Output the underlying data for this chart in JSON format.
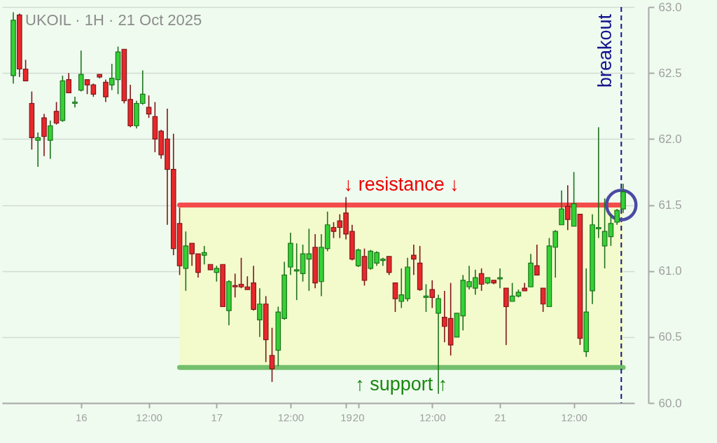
{
  "chart_data": {
    "type": "candlestick",
    "title": "UKOIL · 1H · 21 Oct 2025",
    "categories": [
      null,
      null,
      null,
      null,
      null,
      null,
      null,
      null,
      null,
      null,
      null,
      "16",
      null,
      null,
      null,
      null,
      null,
      null,
      null,
      null,
      null,
      null,
      "12:00",
      null,
      null,
      null,
      null,
      null,
      null,
      null,
      null,
      null,
      null,
      "17",
      null,
      null,
      null,
      null,
      null,
      null,
      null,
      null,
      null,
      null,
      null,
      "12:00",
      null,
      null,
      null,
      null,
      null,
      null,
      null,
      null,
      "19",
      null,
      "20",
      null,
      null,
      null,
      null,
      null,
      null,
      null,
      null,
      null,
      null,
      null,
      "12:00",
      null,
      null,
      null,
      null,
      null,
      null,
      null,
      null,
      null,
      null,
      "21",
      null,
      null,
      null,
      null,
      null,
      null,
      null,
      null,
      null,
      null,
      null,
      "12:00",
      null,
      null,
      null,
      null,
      null,
      null,
      null,
      null
    ],
    "ohlc": [
      [
        62.48,
        62.96,
        62.42,
        62.9
      ],
      [
        62.94,
        62.95,
        62.47,
        62.53
      ],
      [
        62.53,
        62.6,
        62.44,
        62.44
      ],
      [
        62.27,
        62.36,
        61.92,
        62.01
      ],
      [
        61.99,
        62.05,
        61.79,
        62.01
      ],
      [
        62.16,
        62.19,
        61.87,
        62.02
      ],
      [
        61.99,
        62.14,
        61.85,
        62.1
      ],
      [
        62.21,
        62.28,
        62.11,
        62.12
      ],
      [
        62.14,
        62.48,
        62.13,
        62.44
      ],
      [
        62.45,
        62.5,
        62.35,
        62.35
      ],
      [
        62.27,
        62.32,
        62.24,
        62.28
      ],
      [
        62.37,
        62.67,
        62.36,
        62.49
      ],
      [
        62.45,
        62.45,
        62.34,
        62.41
      ],
      [
        62.41,
        62.42,
        62.32,
        62.34
      ],
      [
        62.49,
        62.49,
        62.46,
        62.47
      ],
      [
        62.43,
        62.45,
        62.28,
        62.32
      ],
      [
        62.41,
        62.57,
        62.37,
        62.46
      ],
      [
        62.45,
        62.7,
        62.34,
        62.66
      ],
      [
        62.68,
        62.68,
        62.27,
        62.29
      ],
      [
        62.3,
        62.41,
        62.09,
        62.1
      ],
      [
        62.1,
        62.29,
        62.08,
        62.27
      ],
      [
        62.27,
        62.52,
        62.26,
        62.34
      ],
      [
        62.24,
        62.33,
        62.16,
        62.19
      ],
      [
        62.17,
        62.28,
        61.9,
        62.0
      ],
      [
        62.06,
        62.07,
        61.85,
        61.88
      ],
      [
        62.0,
        62.23,
        61.35,
        61.77
      ],
      [
        61.77,
        62.04,
        61.12,
        61.17
      ],
      [
        61.36,
        61.48,
        60.97,
        61.04
      ],
      [
        61.02,
        61.3,
        60.85,
        61.19
      ],
      [
        61.21,
        61.21,
        61.04,
        61.13
      ],
      [
        61.13,
        61.13,
        60.95,
        60.99
      ],
      [
        61.12,
        61.19,
        61.05,
        61.14
      ],
      [
        61.05,
        61.05,
        61.01,
        61.01
      ],
      [
        60.99,
        61.04,
        60.92,
        61.02
      ],
      [
        61.05,
        61.05,
        60.73,
        60.73
      ],
      [
        60.7,
        60.93,
        60.59,
        60.92
      ],
      [
        60.89,
        60.98,
        60.8,
        60.88
      ],
      [
        60.9,
        61.1,
        60.87,
        60.88
      ],
      [
        60.88,
        60.96,
        60.86,
        60.86
      ],
      [
        60.91,
        61.04,
        60.7,
        60.71
      ],
      [
        60.63,
        60.87,
        60.5,
        60.75
      ],
      [
        60.75,
        60.81,
        60.31,
        60.48
      ],
      [
        60.36,
        60.57,
        60.16,
        60.26
      ],
      [
        60.4,
        60.73,
        60.28,
        60.69
      ],
      [
        60.64,
        61.07,
        60.63,
        60.97
      ],
      [
        61.03,
        61.29,
        60.97,
        61.21
      ],
      [
        61.0,
        61.21,
        60.78,
        61.01
      ],
      [
        60.98,
        61.2,
        60.92,
        61.13
      ],
      [
        61.09,
        61.32,
        60.85,
        61.13
      ],
      [
        61.18,
        61.28,
        60.87,
        60.91
      ],
      [
        60.92,
        61.28,
        60.81,
        61.18
      ],
      [
        61.17,
        61.45,
        61.15,
        61.35
      ],
      [
        61.33,
        61.37,
        61.25,
        61.3
      ],
      [
        61.38,
        61.43,
        61.25,
        61.33
      ],
      [
        61.44,
        61.56,
        61.24,
        61.28
      ],
      [
        61.3,
        61.35,
        61.08,
        61.09
      ],
      [
        61.04,
        61.17,
        61.03,
        61.16
      ],
      [
        61.11,
        61.17,
        60.89,
        60.93
      ],
      [
        61.02,
        61.16,
        61.01,
        61.15
      ],
      [
        61.06,
        61.15,
        61.04,
        61.14
      ],
      [
        61.08,
        61.1,
        61.04,
        61.09
      ],
      [
        61.11,
        61.11,
        60.97,
        60.99
      ],
      [
        60.91,
        60.91,
        60.69,
        60.79
      ],
      [
        60.77,
        61.02,
        60.72,
        60.82
      ],
      [
        60.79,
        61.1,
        60.77,
        61.03
      ],
      [
        61.12,
        61.2,
        60.97,
        61.09
      ],
      [
        61.06,
        61.19,
        60.85,
        60.86
      ],
      [
        60.8,
        60.9,
        60.69,
        60.81
      ],
      [
        60.86,
        60.93,
        60.72,
        60.8
      ],
      [
        60.68,
        60.82,
        60.07,
        60.79
      ],
      [
        60.65,
        60.85,
        60.46,
        60.58
      ],
      [
        60.64,
        60.91,
        60.36,
        60.44
      ],
      [
        60.5,
        60.68,
        60.5,
        60.68
      ],
      [
        60.66,
        60.97,
        60.55,
        60.93
      ],
      [
        60.88,
        61.04,
        60.86,
        60.92
      ],
      [
        60.87,
        61.01,
        60.82,
        60.95
      ],
      [
        60.98,
        61.02,
        60.85,
        60.9
      ],
      [
        60.91,
        60.95,
        60.9,
        60.95
      ],
      [
        60.93,
        60.93,
        60.9,
        60.91
      ],
      [
        60.94,
        61.02,
        60.87,
        60.95
      ],
      [
        60.87,
        60.87,
        60.44,
        60.73
      ],
      [
        60.77,
        60.91,
        60.77,
        60.81
      ],
      [
        60.81,
        60.86,
        60.8,
        60.84
      ],
      [
        60.87,
        60.91,
        60.85,
        60.85
      ],
      [
        60.88,
        61.13,
        60.88,
        61.06
      ],
      [
        61.04,
        61.2,
        60.97,
        60.97
      ],
      [
        60.87,
        60.87,
        60.69,
        60.75
      ],
      [
        60.73,
        61.25,
        60.73,
        61.19
      ],
      [
        61.18,
        61.31,
        60.95,
        61.3
      ],
      [
        61.35,
        61.61,
        61.35,
        61.47
      ],
      [
        61.49,
        61.65,
        61.31,
        61.39
      ],
      [
        61.34,
        61.75,
        61.34,
        61.51
      ],
      [
        61.43,
        61.43,
        60.44,
        60.49
      ],
      [
        60.39,
        61.02,
        60.35,
        60.69
      ],
      [
        60.85,
        61.43,
        60.75,
        61.35
      ],
      [
        61.32,
        62.09,
        61.25,
        61.33
      ],
      [
        61.19,
        61.55,
        61.02,
        61.3
      ],
      [
        61.26,
        61.43,
        61.19,
        61.36
      ],
      [
        61.37,
        61.47,
        61.35,
        61.46
      ],
      [
        61.47,
        61.66,
        61.44,
        61.6
      ]
    ],
    "colors": [
      "#35d135",
      "#e8282b",
      "#e8282b",
      "#e8282b",
      "#35d135",
      "#e8282b",
      "#35d135",
      "#e8282b",
      "#35d135",
      "#e8282b",
      "#35d135",
      "#35d135",
      "#e8282b",
      "#e8282b",
      "#e8282b",
      "#e8282b",
      "#35d135",
      "#35d135",
      "#e8282b",
      "#e8282b",
      "#35d135",
      "#35d135",
      "#e8282b",
      "#e8282b",
      "#e8282b",
      "#e8282b",
      "#e8282b",
      "#e8282b",
      "#35d135",
      "#e8282b",
      "#e8282b",
      "#35d135",
      "#e8282b",
      "#35d135",
      "#e8282b",
      "#35d135",
      "#e8282b",
      "#e8282b",
      "#e8282b",
      "#e8282b",
      "#35d135",
      "#e8282b",
      "#e8282b",
      "#35d135",
      "#35d135",
      "#35d135",
      "#35d135",
      "#35d135",
      "#35d135",
      "#e8282b",
      "#35d135",
      "#35d135",
      "#e8282b",
      "#e8282b",
      "#e8282b",
      "#e8282b",
      "#35d135",
      "#e8282b",
      "#35d135",
      "#35d135",
      "#35d135",
      "#e8282b",
      "#e8282b",
      "#35d135",
      "#35d135",
      "#e8282b",
      "#e8282b",
      "#35d135",
      "#e8282b",
      "#35d135",
      "#e8282b",
      "#e8282b",
      "#35d135",
      "#35d135",
      "#35d135",
      "#35d135",
      "#e8282b",
      "#35d135",
      "#e8282b",
      "#35d135",
      "#e8282b",
      "#35d135",
      "#35d135",
      "#e8282b",
      "#35d135",
      "#e8282b",
      "#e8282b",
      "#35d135",
      "#35d135",
      "#35d135",
      "#e8282b",
      "#35d135",
      "#e8282b",
      "#35d135",
      "#35d135",
      "#35d135",
      "#35d135",
      "#35d135",
      "#35d135",
      "#35d135"
    ],
    "series": [
      {
        "type": "line",
        "name": "↓ resistance ↓",
        "color": "#f44b4b",
        "values": [
          null,
          null,
          null,
          null,
          null,
          null,
          null,
          null,
          null,
          null,
          null,
          null,
          null,
          null,
          null,
          null,
          null,
          null,
          null,
          null,
          null,
          null,
          null,
          null,
          null,
          null,
          null,
          61.5,
          61.5,
          61.5,
          61.5,
          61.5,
          61.5,
          61.5,
          61.5,
          61.5,
          61.5,
          61.5,
          61.5,
          61.5,
          61.5,
          61.5,
          61.5,
          61.5,
          61.5,
          61.5,
          61.5,
          61.5,
          61.5,
          61.5,
          61.5,
          61.5,
          61.5,
          61.5,
          61.5,
          61.5,
          61.5,
          61.5,
          61.5,
          61.5,
          61.5,
          61.5,
          61.5,
          61.5,
          61.5,
          61.5,
          61.5,
          61.5,
          61.5,
          61.5,
          61.5,
          61.5,
          61.5,
          61.5,
          61.5,
          61.5,
          61.5,
          61.5,
          61.5,
          61.5,
          61.5,
          61.5,
          61.5,
          61.5,
          61.5,
          61.5,
          61.5,
          61.5,
          61.5,
          61.5,
          61.5,
          61.5,
          61.5,
          61.5,
          61.5,
          61.5,
          61.5,
          61.5,
          61.5,
          61.5
        ]
      },
      {
        "type": "line",
        "name": "↑ support ↑",
        "color": "#74bf6c",
        "values": [
          null,
          null,
          null,
          null,
          null,
          null,
          null,
          null,
          null,
          null,
          null,
          null,
          null,
          null,
          null,
          null,
          null,
          null,
          null,
          null,
          null,
          null,
          null,
          null,
          null,
          null,
          null,
          60.27,
          60.27,
          60.27,
          60.27,
          60.27,
          60.27,
          60.27,
          60.27,
          60.27,
          60.27,
          60.27,
          60.27,
          60.27,
          60.27,
          60.27,
          60.27,
          60.27,
          60.27,
          60.27,
          60.27,
          60.27,
          60.27,
          60.27,
          60.27,
          60.27,
          60.27,
          60.27,
          60.27,
          60.27,
          60.27,
          60.27,
          60.27,
          60.27,
          60.27,
          60.27,
          60.27,
          60.27,
          60.27,
          60.27,
          60.27,
          60.27,
          60.27,
          60.27,
          60.27,
          60.27,
          60.27,
          60.27,
          60.27,
          60.27,
          60.27,
          60.27,
          60.27,
          60.27,
          60.27,
          60.27,
          60.27,
          60.27,
          60.27,
          60.27,
          60.27,
          60.27,
          60.27,
          60.27,
          60.27,
          60.27,
          60.27,
          60.27,
          60.27,
          60.27,
          60.27,
          60.27,
          60.27,
          60.27
        ]
      }
    ],
    "annotations": [
      "breakout"
    ],
    "bands": [
      {
        "axis": "y",
        "from": 60.27,
        "to": 61.5,
        "color": "#f3facc"
      }
    ],
    "ylim": [
      60,
      63
    ],
    "yticks": [
      {
        "value": 60,
        "label": "60.0"
      },
      60.5,
      {
        "value": 61,
        "label": "61.0"
      },
      61.5,
      {
        "value": 62,
        "label": "62.0"
      },
      62.5,
      {
        "value": 63,
        "label": "63.0"
      }
    ],
    "grid": "y"
  }
}
